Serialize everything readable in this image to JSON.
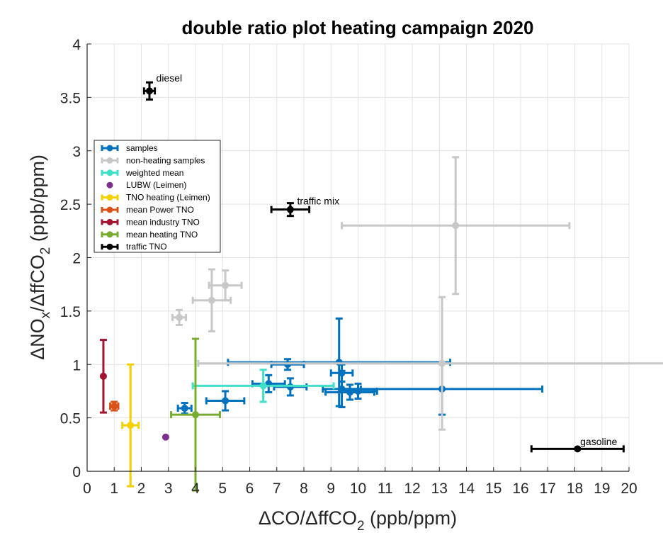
{
  "chart_data": {
    "type": "scatter",
    "title": "double ratio plot heating campaign 2020",
    "xlabel": {
      "pre": "ΔCO/ΔffCO",
      "sub": "2",
      "post": " (ppb/ppm)"
    },
    "ylabel": {
      "p1": "ΔNO",
      "s1": "x",
      "p2": "/ΔffCO",
      "s2": "2",
      "p3": " (ppb/ppm)"
    },
    "xlim": [
      0,
      20
    ],
    "ylim": [
      0,
      4
    ],
    "xticks": [
      "0",
      "1",
      "2",
      "3",
      "4",
      "5",
      "6",
      "7",
      "8",
      "9",
      "10",
      "11",
      "12",
      "13",
      "14",
      "15",
      "16",
      "17",
      "18",
      "19",
      "20"
    ],
    "yticks": [
      "0",
      "0.5",
      "1",
      "1.5",
      "2",
      "2.5",
      "3",
      "3.5",
      "4"
    ],
    "grid": true,
    "legend_position": "upper-left",
    "series": [
      {
        "name": "samples",
        "color": "#0072BD",
        "points": [
          {
            "x": 3.6,
            "y": 0.59,
            "xerr": 0.25,
            "yerr": 0.05
          },
          {
            "x": 5.1,
            "y": 0.66,
            "xerr": 0.7,
            "yerr": 0.09
          },
          {
            "x": 6.7,
            "y": 0.82,
            "xerr": 0.6,
            "yerr": 0.08
          },
          {
            "x": 7.5,
            "y": 0.79,
            "xerr": 0.6,
            "yerr": 0.08
          },
          {
            "x": 7.4,
            "y": 1.0,
            "xerr": 0.6,
            "yerr": 0.05
          },
          {
            "x": 9.3,
            "y": 1.02,
            "xerr": 4.1,
            "yerr": 0.41
          },
          {
            "x": 9.4,
            "y": 0.92,
            "xerr": 0.4,
            "yerr": 0.08
          },
          {
            "x": 9.4,
            "y": 0.77,
            "xerr": 0.7,
            "yerr": 0.17
          },
          {
            "x": 9.7,
            "y": 0.74,
            "xerr": 0.9,
            "yerr": 0.07
          },
          {
            "x": 10.0,
            "y": 0.75,
            "xerr": 0.7,
            "yerr": 0.07
          },
          {
            "x": 13.1,
            "y": 0.77,
            "xerr": 3.7,
            "yerr": 0.24
          }
        ]
      },
      {
        "name": "non-heating samples",
        "color": "#C8C8C8",
        "points": [
          {
            "x": 3.4,
            "y": 1.44,
            "xerr": 0.25,
            "yerr": 0.07
          },
          {
            "x": 4.6,
            "y": 1.6,
            "xerr": 0.7,
            "yerr": 0.29
          },
          {
            "x": 5.1,
            "y": 1.74,
            "xerr": 0.6,
            "yerr": 0.14
          },
          {
            "x": 13.1,
            "y": 1.01,
            "xerr": 9.0,
            "yerr": 0.62
          },
          {
            "x": 13.6,
            "y": 2.3,
            "xerr": 4.2,
            "yerr": 0.64
          }
        ]
      },
      {
        "name": "weighted mean",
        "color": "#40E0C8",
        "points": [
          {
            "x": 6.5,
            "y": 0.8,
            "xerr": 2.6,
            "yerr": 0.15
          }
        ]
      },
      {
        "name": "LUBW (Leimen)",
        "color": "#7E2F8E",
        "marker_only": true,
        "points": [
          {
            "x": 2.9,
            "y": 0.32,
            "xerr": 0,
            "yerr": 0
          }
        ]
      },
      {
        "name": "TNO heating (Leimen)",
        "color": "#F5D000",
        "points": [
          {
            "x": 1.6,
            "y": 0.43,
            "xerr": 0.3,
            "yerr": 0.57
          }
        ]
      },
      {
        "name": "mean Power TNO",
        "color": "#D95319",
        "points": [
          {
            "x": 1.0,
            "y": 0.61,
            "xerr": 0.15,
            "yerr": 0.04
          }
        ]
      },
      {
        "name": "mean industry TNO",
        "color": "#A2142F",
        "points": [
          {
            "x": 0.6,
            "y": 0.89,
            "xerr": 0,
            "yerr": 0.34
          }
        ]
      },
      {
        "name": "mean heating TNO",
        "color": "#77AC30",
        "points": [
          {
            "x": 4.0,
            "y": 0.53,
            "xerr": 0.9,
            "yerr": 0.71
          }
        ]
      },
      {
        "name": "traffic TNO",
        "color": "#000000",
        "points": [
          {
            "x": 2.3,
            "y": 3.56,
            "xerr": 0.2,
            "yerr": 0.08
          },
          {
            "x": 7.5,
            "y": 2.45,
            "xerr": 0.7,
            "yerr": 0.06
          },
          {
            "x": 18.1,
            "y": 0.21,
            "xerr": 1.7,
            "yerr": 0
          }
        ]
      }
    ],
    "annotations": [
      {
        "text": "diesel",
        "x": 2.55,
        "y": 3.68
      },
      {
        "text": "traffic mix",
        "x": 7.75,
        "y": 2.53
      },
      {
        "text": "gasoline",
        "x": 18.2,
        "y": 0.28
      }
    ]
  }
}
